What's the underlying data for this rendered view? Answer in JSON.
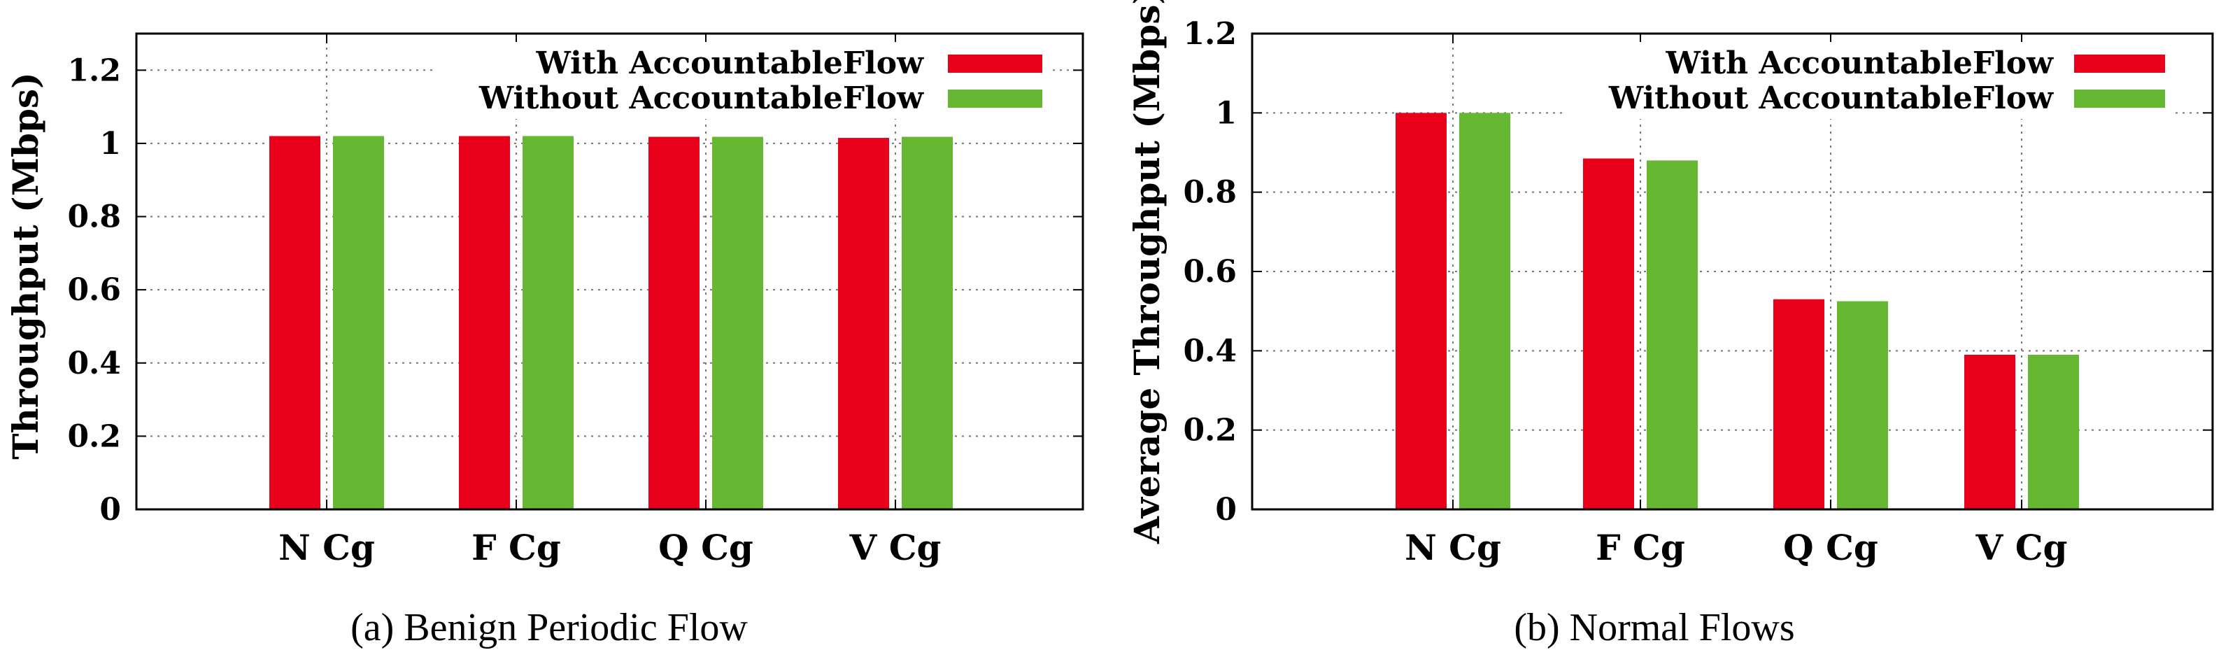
{
  "colors": {
    "with": "#e8001a",
    "without": "#66b833",
    "grid": "#777777",
    "axis": "#000000"
  },
  "chart_data": [
    {
      "type": "bar",
      "caption": "(a)  Benign Periodic Flow",
      "title": "",
      "xlabel": "",
      "ylabel": "Throughput (Mbps)",
      "ylim": [
        0,
        1.3
      ],
      "yticks": [
        "0",
        "0.2",
        "0.4",
        "0.6",
        "0.8",
        "1",
        "1.2"
      ],
      "ytick_values": [
        0,
        0.2,
        0.4,
        0.6,
        0.8,
        1.0,
        1.2
      ],
      "categories": [
        "N Cg",
        "F Cg",
        "Q Cg",
        "V Cg"
      ],
      "grid": true,
      "legend_position": "top-right",
      "series": [
        {
          "name": "With AccountableFlow",
          "color_key": "with",
          "values": [
            1.02,
            1.02,
            1.018,
            1.015
          ]
        },
        {
          "name": "Without AccountableFlow",
          "color_key": "without",
          "values": [
            1.02,
            1.02,
            1.018,
            1.018
          ]
        }
      ]
    },
    {
      "type": "bar",
      "caption": "(b)  Normal Flows",
      "title": "",
      "xlabel": "",
      "ylabel": "Average Throughput (Mbps)",
      "ylim": [
        0,
        1.2
      ],
      "yticks": [
        "0",
        "0.2",
        "0.4",
        "0.6",
        "0.8",
        "1",
        "1.2"
      ],
      "ytick_values": [
        0,
        0.2,
        0.4,
        0.6,
        0.8,
        1.0,
        1.2
      ],
      "categories": [
        "N Cg",
        "F Cg",
        "Q Cg",
        "V Cg"
      ],
      "grid": true,
      "legend_position": "top-right",
      "series": [
        {
          "name": "With AccountableFlow",
          "color_key": "with",
          "values": [
            1.0,
            0.885,
            0.53,
            0.39
          ]
        },
        {
          "name": "Without AccountableFlow",
          "color_key": "without",
          "values": [
            1.0,
            0.88,
            0.525,
            0.39
          ]
        }
      ]
    }
  ]
}
